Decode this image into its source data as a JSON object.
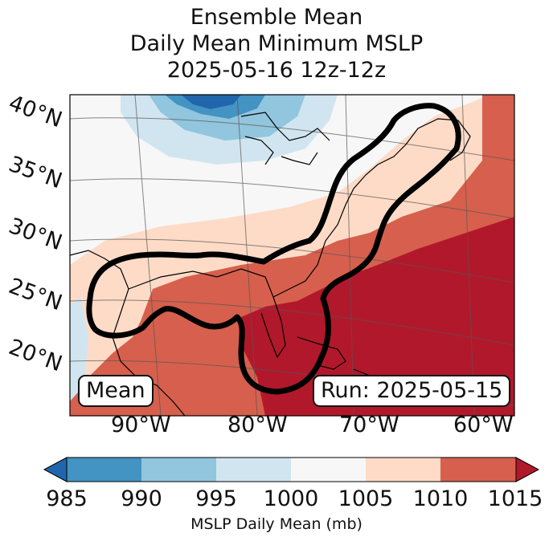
{
  "title": {
    "line1": "Ensemble Mean",
    "line2": "Daily Mean Minimum MSLP",
    "line3": "2025-05-16 12z-12z"
  },
  "lat_labels": [
    "40°N",
    "35°N",
    "30°N",
    "25°N",
    "20°N"
  ],
  "lon_labels": [
    "90°W",
    "80°W",
    "70°W",
    "60°W"
  ],
  "mean_label": "Mean",
  "run_label": "Run: 2025-05-15",
  "colorbar": {
    "ticks": [
      "985",
      "990",
      "995",
      "1000",
      "1005",
      "1010",
      "1015"
    ],
    "label": "MSLP Daily Mean (mb)",
    "colors": [
      "#2166ac",
      "#4393c3",
      "#92c5de",
      "#d1e5f0",
      "#f7f7f7",
      "#fddbc7",
      "#d6604d",
      "#b2182b"
    ],
    "extend": "both"
  },
  "contour_color": "#000000",
  "coast_color": "#000000"
}
